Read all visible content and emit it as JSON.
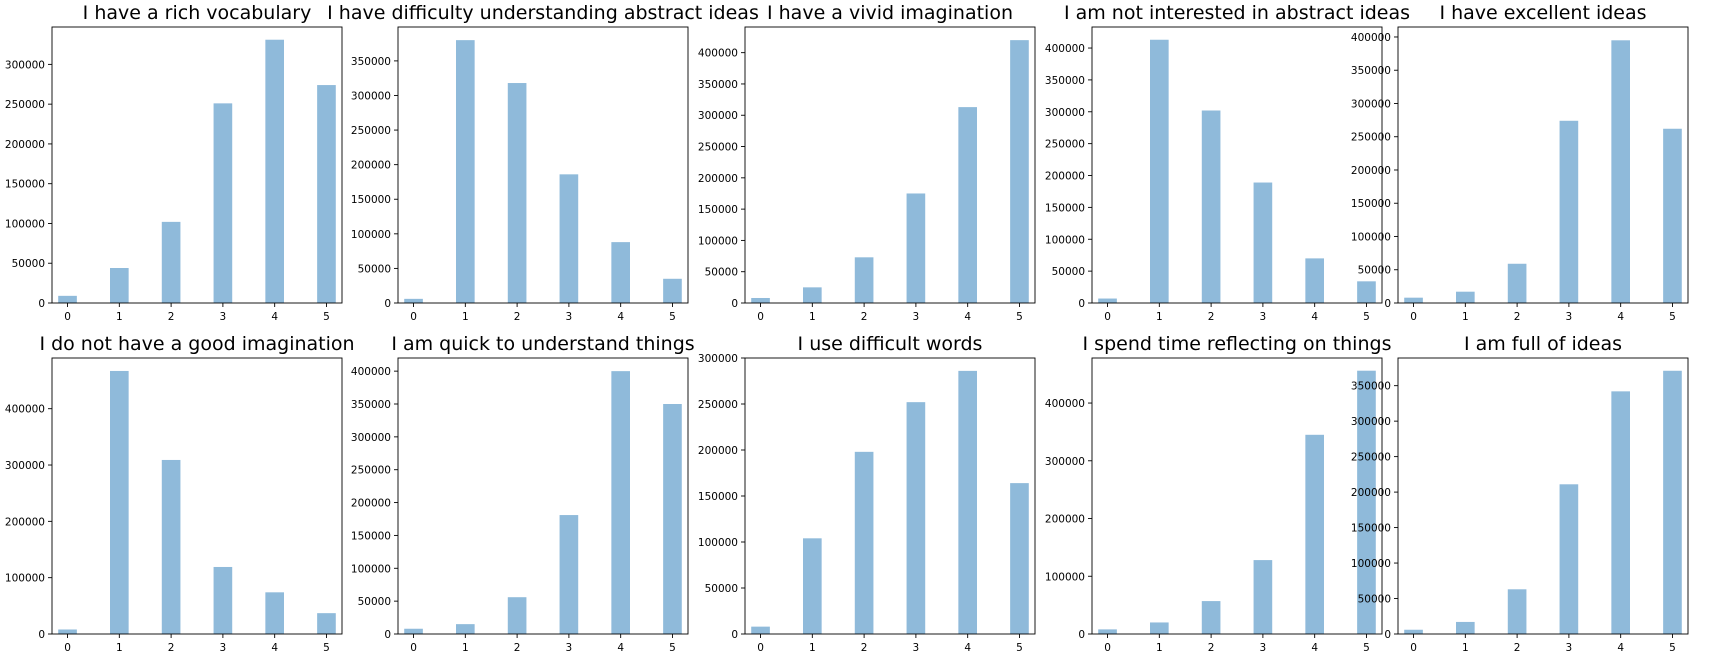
{
  "chart_data": [
    {
      "type": "bar",
      "title": "I have a rich vocabulary",
      "xlabel": "",
      "ylabel": "",
      "x": [
        0,
        1,
        2,
        3,
        4,
        5
      ],
      "values": [
        9000,
        44000,
        102000,
        251000,
        331000,
        274000
      ],
      "xlim": [
        -0.3,
        5.3
      ],
      "ylim": [
        0,
        347000
      ],
      "yticks": [
        0,
        50000,
        100000,
        150000,
        200000,
        250000,
        300000
      ],
      "grid": false,
      "bar_color": "#8fbada"
    },
    {
      "type": "bar",
      "title": "I have difficulty understanding abstract ideas",
      "xlabel": "",
      "ylabel": "",
      "x": [
        0,
        1,
        2,
        3,
        4,
        5
      ],
      "values": [
        6000,
        380000,
        318000,
        186000,
        88000,
        35000
      ],
      "xlim": [
        -0.3,
        5.3
      ],
      "ylim": [
        0,
        399000
      ],
      "yticks": [
        0,
        50000,
        100000,
        150000,
        200000,
        250000,
        300000,
        350000
      ],
      "grid": false,
      "bar_color": "#8fbada"
    },
    {
      "type": "bar",
      "title": "I have a vivid imagination",
      "xlabel": "",
      "ylabel": "",
      "x": [
        0,
        1,
        2,
        3,
        4,
        5
      ],
      "values": [
        8000,
        25000,
        73000,
        175000,
        313000,
        420000
      ],
      "xlim": [
        -0.3,
        5.3
      ],
      "ylim": [
        0,
        441000
      ],
      "yticks": [
        0,
        50000,
        100000,
        150000,
        200000,
        250000,
        300000,
        350000,
        400000
      ],
      "grid": false,
      "bar_color": "#8fbada"
    },
    {
      "type": "bar",
      "title": "I am not interested in abstract ideas",
      "xlabel": "",
      "ylabel": "",
      "x": [
        0,
        1,
        2,
        3,
        4,
        5
      ],
      "values": [
        7000,
        413000,
        302000,
        189000,
        70000,
        34000
      ],
      "xlim": [
        -0.3,
        5.3
      ],
      "ylim": [
        0,
        433000
      ],
      "yticks": [
        0,
        50000,
        100000,
        150000,
        200000,
        250000,
        300000,
        350000,
        400000
      ],
      "grid": false,
      "bar_color": "#8fbada"
    },
    {
      "type": "bar",
      "title": "I have excellent ideas",
      "xlabel": "",
      "ylabel": "",
      "x": [
        0,
        1,
        2,
        3,
        4,
        5
      ],
      "values": [
        8000,
        17000,
        59000,
        274000,
        395000,
        262000
      ],
      "xlim": [
        -0.3,
        5.3
      ],
      "ylim": [
        0,
        415000
      ],
      "yticks": [
        0,
        50000,
        100000,
        150000,
        200000,
        250000,
        300000,
        350000,
        400000
      ],
      "grid": false,
      "bar_color": "#8fbada"
    },
    {
      "type": "bar",
      "title": "I do not have a good imagination",
      "xlabel": "",
      "ylabel": "",
      "x": [
        0,
        1,
        2,
        3,
        4,
        5
      ],
      "values": [
        8000,
        467000,
        309000,
        119000,
        74000,
        37000
      ],
      "xlim": [
        -0.3,
        5.3
      ],
      "ylim": [
        0,
        490000
      ],
      "yticks": [
        0,
        100000,
        200000,
        300000,
        400000
      ],
      "grid": false,
      "bar_color": "#8fbada"
    },
    {
      "type": "bar",
      "title": "I am quick to understand things",
      "xlabel": "",
      "ylabel": "",
      "x": [
        0,
        1,
        2,
        3,
        4,
        5
      ],
      "values": [
        8000,
        15000,
        56000,
        181000,
        400000,
        350000
      ],
      "xlim": [
        -0.3,
        5.3
      ],
      "ylim": [
        0,
        420000
      ],
      "yticks": [
        0,
        50000,
        100000,
        150000,
        200000,
        250000,
        300000,
        350000,
        400000
      ],
      "grid": false,
      "bar_color": "#8fbada"
    },
    {
      "type": "bar",
      "title": "I use difficult words",
      "xlabel": "",
      "ylabel": "",
      "x": [
        0,
        1,
        2,
        3,
        4,
        5
      ],
      "values": [
        8000,
        104000,
        198000,
        252000,
        286000,
        164000
      ],
      "xlim": [
        -0.3,
        5.3
      ],
      "ylim": [
        0,
        300000
      ],
      "yticks": [
        0,
        50000,
        100000,
        150000,
        200000,
        250000,
        300000
      ],
      "grid": false,
      "bar_color": "#8fbada"
    },
    {
      "type": "bar",
      "title": "I spend time reflecting on things",
      "xlabel": "",
      "ylabel": "",
      "x": [
        0,
        1,
        2,
        3,
        4,
        5
      ],
      "values": [
        8000,
        20000,
        57000,
        128000,
        345000,
        456000
      ],
      "xlim": [
        -0.3,
        5.3
      ],
      "ylim": [
        0,
        478000
      ],
      "yticks": [
        0,
        100000,
        200000,
        300000,
        400000
      ],
      "grid": false,
      "bar_color": "#8fbada"
    },
    {
      "type": "bar",
      "title": "I am full of ideas",
      "xlabel": "",
      "ylabel": "",
      "x": [
        0,
        1,
        2,
        3,
        4,
        5
      ],
      "values": [
        6000,
        17000,
        63000,
        211000,
        342000,
        371000
      ],
      "xlim": [
        -0.3,
        5.3
      ],
      "ylim": [
        0,
        389000
      ],
      "yticks": [
        0,
        50000,
        100000,
        150000,
        200000,
        250000,
        300000,
        350000
      ],
      "grid": false,
      "bar_color": "#8fbada"
    }
  ]
}
